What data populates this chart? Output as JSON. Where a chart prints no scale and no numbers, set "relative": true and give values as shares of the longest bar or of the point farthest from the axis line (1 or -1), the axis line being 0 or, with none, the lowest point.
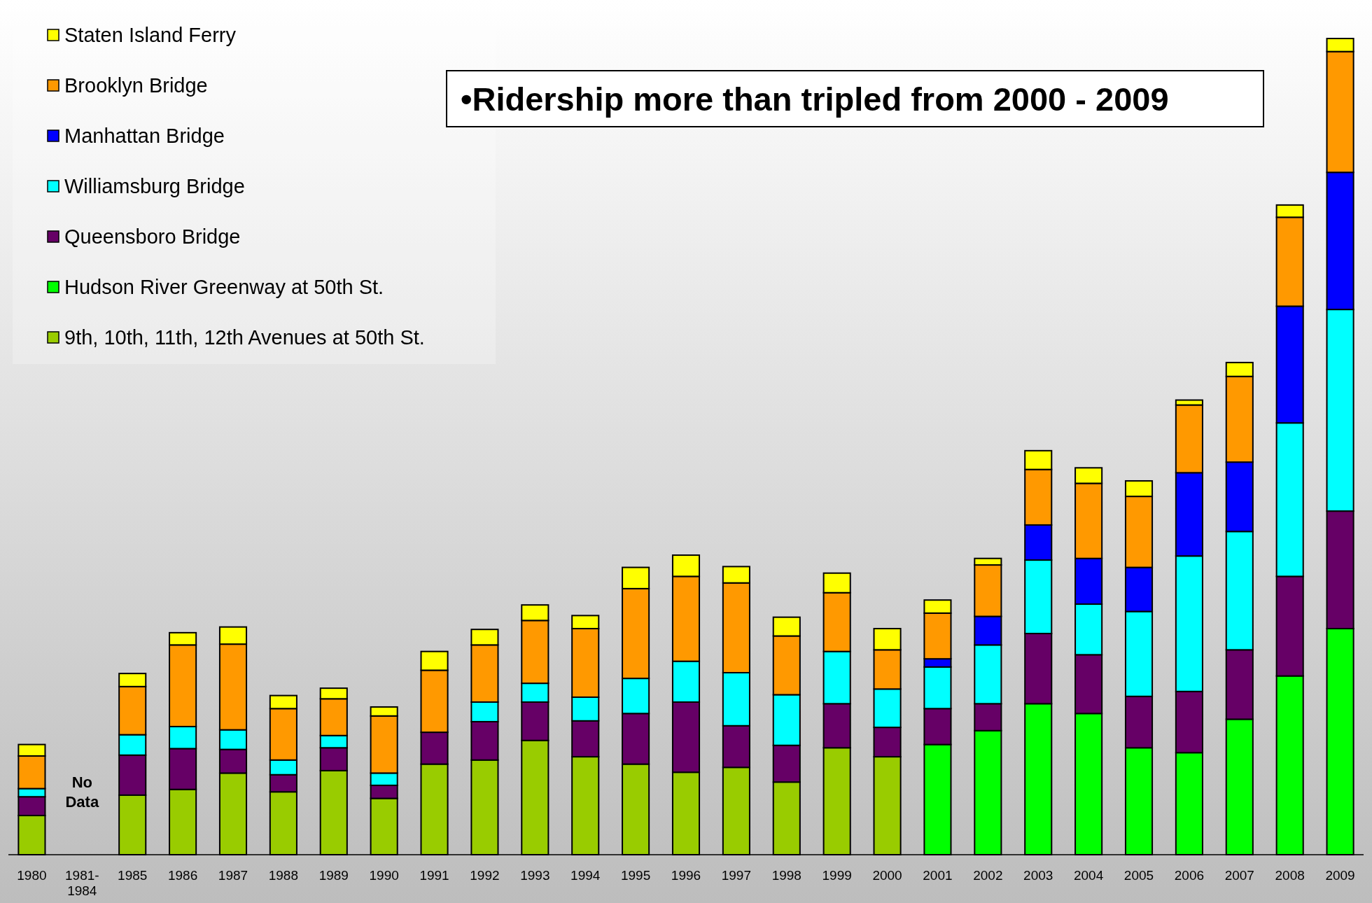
{
  "chart_data": {
    "type": "bar",
    "stacked": true,
    "relative": true,
    "legend": "top left",
    "categories": [
      "1980",
      "1981-1984",
      "1985",
      "1986",
      "1987",
      "1988",
      "1989",
      "1990",
      "1991",
      "1992",
      "1993",
      "1994",
      "1995",
      "1996",
      "1997",
      "1998",
      "1999",
      "2000",
      "2001",
      "2002",
      "2003",
      "2004",
      "2005",
      "2006",
      "2007",
      "2008",
      "2009"
    ],
    "series": [
      {
        "name": "9th, 10th, 11th, 12th Avenues at 50th St.",
        "color": "#99cc00",
        "values": [
          0.048,
          null,
          0.073,
          0.08,
          0.1,
          0.077,
          0.103,
          0.069,
          0.111,
          0.116,
          0.14,
          0.12,
          0.111,
          0.101,
          0.107,
          0.089,
          0.131,
          0.12,
          null,
          null,
          null,
          null,
          null,
          null,
          null,
          null,
          null
        ]
      },
      {
        "name": "Hudson River Greenway at 50th St.",
        "color": "#00ff00",
        "values": [
          null,
          null,
          null,
          null,
          null,
          null,
          null,
          null,
          null,
          null,
          null,
          null,
          null,
          null,
          null,
          null,
          null,
          null,
          0.135,
          0.152,
          0.185,
          0.173,
          0.131,
          0.125,
          0.166,
          0.219,
          0.277
        ]
      },
      {
        "name": "Queensboro Bridge",
        "color": "#660066",
        "values": [
          0.023,
          null,
          0.049,
          0.05,
          0.029,
          0.021,
          0.028,
          0.016,
          0.039,
          0.047,
          0.047,
          0.044,
          0.062,
          0.086,
          0.051,
          0.045,
          0.054,
          0.036,
          0.044,
          0.033,
          0.086,
          0.072,
          0.063,
          0.075,
          0.085,
          0.122,
          0.144
        ]
      },
      {
        "name": "Williamsburg Bridge",
        "color": "#00ffff",
        "values": [
          0.01,
          null,
          0.025,
          0.027,
          0.024,
          0.018,
          0.015,
          0.015,
          null,
          0.024,
          0.023,
          0.029,
          0.043,
          0.05,
          0.065,
          0.062,
          0.064,
          0.047,
          0.051,
          0.072,
          0.09,
          0.062,
          0.104,
          0.166,
          0.145,
          0.188,
          0.247
        ]
      },
      {
        "name": "Manhattan Bridge",
        "color": "#0000ff",
        "values": [
          null,
          null,
          null,
          null,
          null,
          null,
          null,
          null,
          null,
          null,
          null,
          null,
          null,
          null,
          null,
          null,
          null,
          null,
          0.01,
          0.035,
          0.043,
          0.056,
          0.054,
          0.102,
          0.085,
          0.143,
          0.168
        ]
      },
      {
        "name": "Brooklyn Bridge",
        "color": "#ff9900",
        "values": [
          0.04,
          null,
          0.059,
          0.1,
          0.105,
          0.063,
          0.045,
          0.07,
          0.076,
          0.07,
          0.077,
          0.084,
          0.11,
          0.104,
          0.11,
          0.072,
          0.072,
          0.048,
          0.056,
          0.063,
          0.068,
          0.092,
          0.087,
          0.083,
          0.105,
          0.109,
          0.148
        ]
      },
      {
        "name": "Staten Island Ferry",
        "color": "#ffff00",
        "values": [
          0.014,
          null,
          0.016,
          0.015,
          0.021,
          0.016,
          0.013,
          0.011,
          0.023,
          0.019,
          0.019,
          0.016,
          0.026,
          0.026,
          0.02,
          0.023,
          0.024,
          0.026,
          0.016,
          0.008,
          0.023,
          0.019,
          0.019,
          0.006,
          0.017,
          0.015,
          0.016
        ]
      }
    ],
    "annotations": [
      "•Ridership more than tripled from 2000 - 2009",
      "No Data"
    ]
  }
}
